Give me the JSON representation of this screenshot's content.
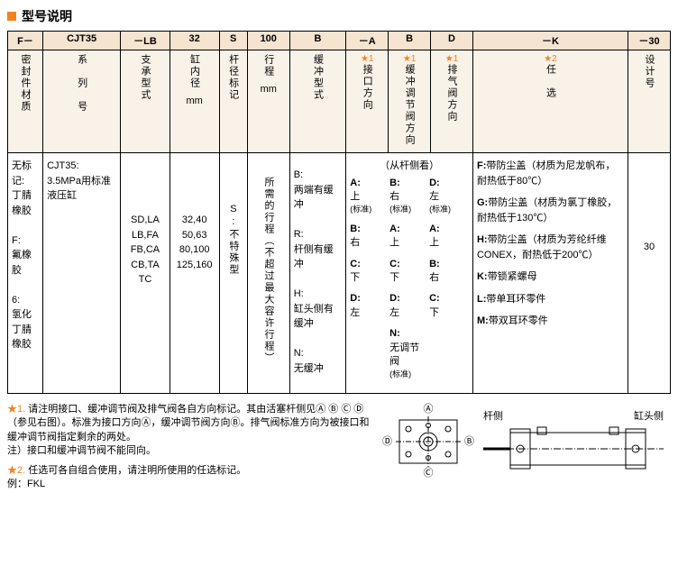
{
  "title": "型号说明",
  "colors": {
    "accent": "#f58220",
    "header_bg": "#f4e4d0",
    "subheader_bg": "#f9f2e8",
    "border": "#000000"
  },
  "col_widths_pct": [
    5,
    11,
    7,
    7,
    4,
    6,
    8,
    6,
    6,
    6,
    22,
    6
  ],
  "header1": [
    "F－",
    "CJT35",
    "－LB",
    "32",
    "S",
    "100",
    "B",
    "－A",
    "B",
    "D",
    "－K",
    "－30"
  ],
  "header2": [
    {
      "text": "密封件材质",
      "vert": true
    },
    {
      "text": "系　列　号",
      "vert": true
    },
    {
      "text": "支承型式",
      "vert": true
    },
    {
      "text": "缸内径",
      "vert": true,
      "unit": "mm"
    },
    {
      "text": "杆径标记",
      "vert": true
    },
    {
      "text": "行程",
      "vert": true,
      "unit": "mm"
    },
    {
      "text": "缓冲型式",
      "vert": true
    },
    {
      "star": "★1",
      "text": "接口方向",
      "vert": true
    },
    {
      "star": "★1",
      "text": "缓冲调节阀方向",
      "vert": true
    },
    {
      "star": "★1",
      "text": "排气阀方向",
      "vert": true
    },
    {
      "star": "★2",
      "text": "任　选",
      "vert": true
    },
    {
      "text": "设计号",
      "vert": true
    }
  ],
  "body": {
    "seal": "无标记:\n丁腈橡胶\n\nF:\n氟橡胶\n\n6:\n氢化丁腈橡胶",
    "series": "CJT35:\n3.5MPa用标准液压缸",
    "mount": "SD,LA\nLB,FA\nFB,CA\nCB,TA\nTC",
    "bore": "32,40\n50,63\n80,100\n125,160",
    "rod": "S:\n不特殊型",
    "stroke": "所需的行程（不超过最大容许行程）",
    "cushion": "B:\n两端有缓冲\n\nR:\n杆侧有缓冲\n\nH:\n缸头侧有缓冲\n\nN:\n无缓冲",
    "direction_header": "（从杆侧看）",
    "dir_cols": [
      "A",
      "B",
      "D"
    ],
    "dir_rows": [
      [
        {
          "k": "A:",
          "v": "上",
          "s": "(标准)"
        },
        {
          "k": "B:",
          "v": "右",
          "s": "(标准)"
        },
        {
          "k": "D:",
          "v": "左",
          "s": "(标准)"
        }
      ],
      [
        {
          "k": "B:",
          "v": "右"
        },
        {
          "k": "A:",
          "v": "上"
        },
        {
          "k": "A:",
          "v": "上"
        }
      ],
      [
        {
          "k": "C:",
          "v": "下"
        },
        {
          "k": "C:",
          "v": "下"
        },
        {
          "k": "B:",
          "v": "右"
        }
      ],
      [
        {
          "k": "D:",
          "v": "左"
        },
        {
          "k": "D:",
          "v": "左"
        },
        {
          "k": "C:",
          "v": "下"
        }
      ],
      [
        {
          "k": "",
          "v": ""
        },
        {
          "k": "N:",
          "v": "无调节阀",
          "s": "(标准)"
        },
        {
          "k": "",
          "v": ""
        }
      ]
    ],
    "options": [
      {
        "k": "F:",
        "v": "带防尘盖（材质为尼龙帆布，耐热低于80℃）"
      },
      {
        "k": "G:",
        "v": "带防尘盖（材质为氯丁橡胶，耐热低于130℃）"
      },
      {
        "k": "H:",
        "v": "带防尘盖（材质为芳纶纤维CONEX，耐热低于200℃）"
      },
      {
        "k": "K:",
        "v": "带锁紧螺母"
      },
      {
        "k": "L:",
        "v": "带单耳环零件"
      },
      {
        "k": "M:",
        "v": "带双耳环零件"
      }
    ],
    "design": "30"
  },
  "footnotes": [
    {
      "star": "★1.",
      "text": "请注明接口、缓冲调节阀及排气阀各自方向标记。其由活塞杆侧见Ⓐ Ⓑ Ⓒ Ⓓ（参见右图）。标准为接口方向Ⓐ，缓冲调节阀方向Ⓑ。排气阀标准方向为被接口和缓冲调节阀指定剩余的两处。\n注）接口和缓冲调节阀不能同向。"
    },
    {
      "star": "★2.",
      "text": "任选可各自组合使用，请注明所使用的任选标记。\n例：FKL"
    }
  ],
  "diagram_labels": {
    "a": "Ⓐ",
    "b": "Ⓑ",
    "c": "Ⓒ",
    "d": "Ⓓ",
    "rod_side": "杆侧",
    "head_side": "缸头侧"
  }
}
